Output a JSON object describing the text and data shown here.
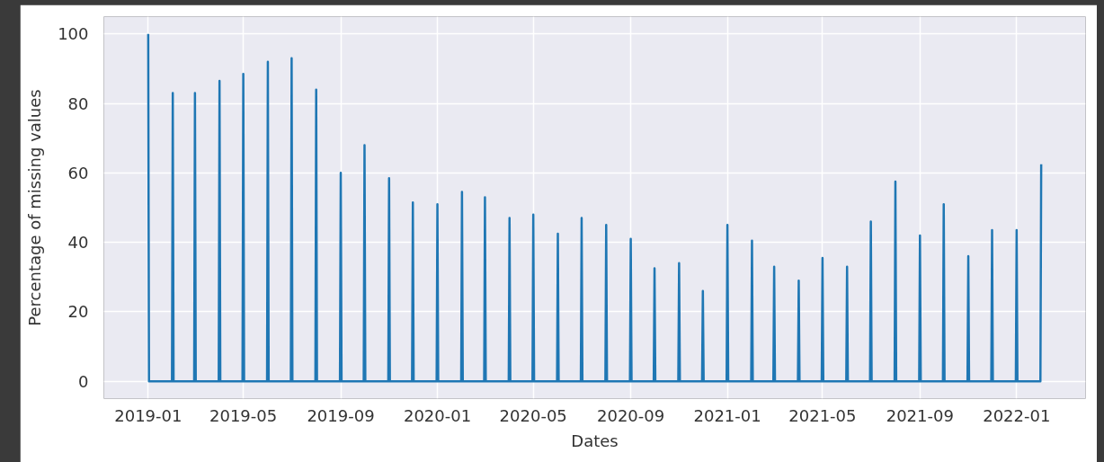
{
  "chart_data": {
    "type": "line",
    "xlabel": "Dates",
    "ylabel": "Percentage of missing values",
    "x": [
      "2019-01-01",
      "2019-01-02",
      "2019-01-31",
      "2019-02-01",
      "2019-02-02",
      "2019-02-28",
      "2019-03-01",
      "2019-03-02",
      "2019-03-31",
      "2019-04-01",
      "2019-04-02",
      "2019-04-30",
      "2019-05-01",
      "2019-05-02",
      "2019-05-31",
      "2019-06-01",
      "2019-06-02",
      "2019-06-30",
      "2019-07-01",
      "2019-07-02",
      "2019-07-31",
      "2019-08-01",
      "2019-08-02",
      "2019-08-31",
      "2019-09-01",
      "2019-09-02",
      "2019-09-30",
      "2019-10-01",
      "2019-10-02",
      "2019-10-31",
      "2019-11-01",
      "2019-11-02",
      "2019-11-30",
      "2019-12-01",
      "2019-12-02",
      "2019-12-31",
      "2020-01-01",
      "2020-01-02",
      "2020-01-31",
      "2020-02-01",
      "2020-02-02",
      "2020-02-29",
      "2020-03-01",
      "2020-03-02",
      "2020-03-31",
      "2020-04-01",
      "2020-04-02",
      "2020-04-30",
      "2020-05-01",
      "2020-05-02",
      "2020-05-31",
      "2020-06-01",
      "2020-06-02",
      "2020-06-30",
      "2020-07-01",
      "2020-07-02",
      "2020-07-31",
      "2020-08-01",
      "2020-08-02",
      "2020-08-31",
      "2020-09-01",
      "2020-09-02",
      "2020-09-30",
      "2020-10-01",
      "2020-10-02",
      "2020-10-31",
      "2020-11-01",
      "2020-11-02",
      "2020-11-30",
      "2020-12-01",
      "2020-12-02",
      "2020-12-31",
      "2021-01-01",
      "2021-01-02",
      "2021-01-31",
      "2021-02-01",
      "2021-02-02",
      "2021-02-28",
      "2021-03-01",
      "2021-03-02",
      "2021-03-31",
      "2021-04-01",
      "2021-04-02",
      "2021-04-30",
      "2021-05-01",
      "2021-05-02",
      "2021-05-31",
      "2021-06-01",
      "2021-06-02",
      "2021-06-30",
      "2021-07-01",
      "2021-07-02",
      "2021-07-31",
      "2021-08-01",
      "2021-08-02",
      "2021-08-31",
      "2021-09-01",
      "2021-09-02",
      "2021-09-30",
      "2021-10-01",
      "2021-10-02",
      "2021-10-31",
      "2021-11-01",
      "2021-11-02",
      "2021-11-30",
      "2021-12-01",
      "2021-12-02",
      "2021-12-31",
      "2022-01-01",
      "2022-01-02",
      "2022-01-31",
      "2022-02-01"
    ],
    "series": [
      {
        "color": "#1f77b4",
        "values": [
          100,
          0,
          0,
          83,
          0,
          0,
          83,
          0,
          0,
          86.5,
          0,
          0,
          88.5,
          0,
          0,
          92,
          0,
          0,
          93,
          0,
          0,
          84,
          0,
          0,
          60,
          0,
          0,
          68,
          0,
          0,
          58.5,
          0,
          0,
          51.5,
          0,
          0,
          51,
          0,
          0,
          54.5,
          0,
          0,
          53,
          0,
          0,
          47,
          0,
          0,
          48,
          0,
          0,
          42.5,
          0,
          0,
          47,
          0,
          0,
          45,
          0,
          0,
          41,
          0,
          0,
          32.5,
          0,
          0,
          34,
          0,
          0,
          26,
          0,
          0,
          45,
          0,
          0,
          40.5,
          0,
          0,
          33,
          0,
          0,
          29,
          0,
          0,
          35.5,
          0,
          0,
          33,
          0,
          0,
          46,
          0,
          0,
          57.5,
          0,
          0,
          42,
          0,
          0,
          51,
          0,
          0,
          36,
          0,
          0,
          43.5,
          0,
          0,
          43.5,
          0,
          0,
          62.5
        ]
      }
    ],
    "xlim": [
      "2018-11-06",
      "2022-03-29"
    ],
    "ylim": [
      -5,
      105
    ],
    "xticks": [
      "2019-01",
      "2019-05",
      "2019-09",
      "2020-01",
      "2020-05",
      "2020-09",
      "2021-01",
      "2021-05",
      "2021-09",
      "2022-01"
    ],
    "yticks": [
      0,
      20,
      40,
      60,
      80,
      100
    ],
    "grid": true
  }
}
